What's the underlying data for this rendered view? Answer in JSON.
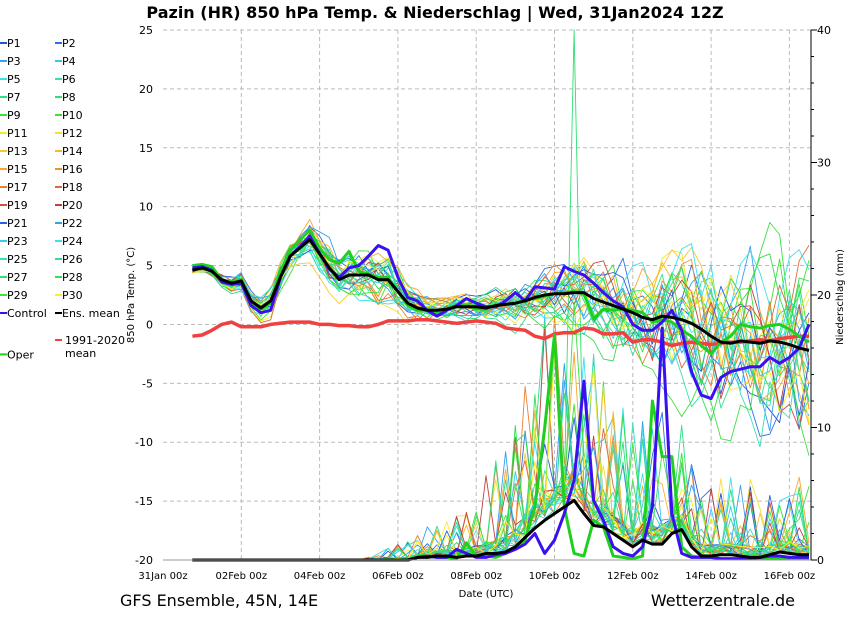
{
  "chart_data": {
    "type": "line",
    "title": "Pazin  (HR)  850 hPa Temp. & Niederschlag | Wed, 31Jan2024 12Z",
    "ylabel": "850 hPa Temp. (°C)",
    "y2label": "Niederschlag (mm)",
    "xlabel": "Date (UTC)",
    "footer_left": "GFS Ensemble, 45N, 14E",
    "footer_right": "Wetterzentrale.de",
    "ylim": [
      -20,
      25
    ],
    "y2lim": [
      0,
      40
    ],
    "yticks": [
      "-20",
      "-15",
      "-10",
      "-5",
      "0",
      "5",
      "10",
      "15",
      "20",
      "25"
    ],
    "y2ticks": [
      "0",
      "10",
      "20",
      "30",
      "40"
    ],
    "xticks": [
      "31Jan 00z",
      "02Feb 00z",
      "04Feb 00z",
      "06Feb 00z",
      "08Feb 00z",
      "10Feb 00z",
      "12Feb 00z",
      "14Feb 00z",
      "16Feb 00z"
    ],
    "x_start_hour": 18,
    "x_step_hours": 6,
    "grid": true,
    "legend_position": "left-outside",
    "legend": [
      {
        "label": "P1",
        "color": "#2a4fd8"
      },
      {
        "label": "P2",
        "color": "#2f6ee8"
      },
      {
        "label": "P3",
        "color": "#3aa0f0"
      },
      {
        "label": "P4",
        "color": "#3cc4f0"
      },
      {
        "label": "P5",
        "color": "#3ee0e6"
      },
      {
        "label": "P6",
        "color": "#36e0b0"
      },
      {
        "label": "P7",
        "color": "#2ee08a"
      },
      {
        "label": "P8",
        "color": "#2ee070"
      },
      {
        "label": "P9",
        "color": "#3ae040"
      },
      {
        "label": "P10",
        "color": "#40e030"
      },
      {
        "label": "P11",
        "color": "#f0f020"
      },
      {
        "label": "P12",
        "color": "#f5e030"
      },
      {
        "label": "P13",
        "color": "#f8c830"
      },
      {
        "label": "P14",
        "color": "#f8b828"
      },
      {
        "label": "P15",
        "color": "#f5a830"
      },
      {
        "label": "P16",
        "color": "#ee9030"
      },
      {
        "label": "P17",
        "color": "#e88030"
      },
      {
        "label": "P18",
        "color": "#e06840"
      },
      {
        "label": "P19",
        "color": "#d05040"
      },
      {
        "label": "P20",
        "color": "#c04040"
      },
      {
        "label": "P21",
        "color": "#2a60e0"
      },
      {
        "label": "P22",
        "color": "#30a0f0"
      },
      {
        "label": "P23",
        "color": "#38c8f0"
      },
      {
        "label": "P24",
        "color": "#38e0f0"
      },
      {
        "label": "P25",
        "color": "#36e0b8"
      },
      {
        "label": "P26",
        "color": "#30e090"
      },
      {
        "label": "P27",
        "color": "#30e070"
      },
      {
        "label": "P28",
        "color": "#30e050"
      },
      {
        "label": "P29",
        "color": "#40e040"
      },
      {
        "label": "P30",
        "color": "#f8f020"
      },
      {
        "label": "Control",
        "color": "#3a10f0"
      },
      {
        "label": "Ens. mean",
        "color": "#000000"
      },
      {
        "label": "1991-2020 mean",
        "color": "#f04040"
      },
      {
        "label": "Oper",
        "color": "#20d020"
      }
    ],
    "series": [
      {
        "name": "Ens. mean",
        "color": "#000000",
        "values": [
          4.6,
          4.8,
          4.5,
          3.8,
          3.5,
          3.7,
          2.0,
          1.4,
          2.0,
          4.0,
          5.8,
          6.5,
          7.2,
          6.0,
          4.8,
          3.8,
          4.2,
          4.2,
          4.2,
          3.8,
          3.8,
          2.8,
          1.8,
          1.4,
          1.2,
          1.2,
          1.3,
          1.5,
          1.5,
          1.5,
          1.4,
          1.6,
          1.7,
          1.8,
          2.0,
          2.3,
          2.5,
          2.6,
          2.6,
          2.7,
          2.7,
          2.2,
          1.9,
          1.6,
          1.3,
          1.0,
          0.6,
          0.4,
          0.7,
          0.6,
          0.4,
          0.1,
          -0.4,
          -1.0,
          -1.5,
          -1.6,
          -1.4,
          -1.5,
          -1.6,
          -1.4,
          -1.5,
          -1.7,
          -2.0,
          -2.2
        ]
      },
      {
        "name": "Control",
        "color": "#3a10f0",
        "values": [
          4.8,
          4.9,
          4.6,
          3.6,
          3.4,
          3.5,
          1.6,
          1.0,
          1.2,
          4.0,
          5.8,
          6.6,
          7.5,
          6.0,
          4.7,
          4.0,
          4.8,
          5.0,
          5.8,
          6.7,
          6.3,
          4.0,
          2.3,
          2.0,
          1.2,
          0.7,
          1.2,
          1.6,
          2.2,
          1.8,
          1.5,
          1.5,
          2.0,
          2.7,
          2.0,
          3.2,
          3.1,
          3.0,
          4.9,
          4.5,
          4.2,
          3.5,
          2.7,
          2.0,
          1.5,
          0.0,
          -0.5,
          -0.5,
          0.2,
          1.2,
          -0.5,
          -4.0,
          -6.0,
          -6.3,
          -4.5,
          -4.0,
          -3.8,
          -3.6,
          -3.6,
          -2.8,
          -3.3,
          -2.8,
          -2.0,
          0.0
        ]
      },
      {
        "name": "Oper",
        "color": "#20d020",
        "values": [
          5.0,
          5.1,
          4.9,
          3.8,
          3.6,
          3.8,
          1.8,
          1.3,
          1.8,
          4.5,
          6.3,
          7.2,
          8.0,
          6.5,
          5.5,
          5.2,
          6.2,
          4.5,
          4.3,
          4.0,
          4.0,
          2.8,
          1.6,
          1.2,
          1.2,
          1.0,
          1.3,
          1.6,
          1.6,
          1.3,
          1.3,
          1.7,
          1.7,
          1.8,
          2.1,
          2.2,
          2.4,
          2.6,
          2.7,
          2.8,
          2.6,
          0.5,
          1.3,
          1.2,
          1.3,
          1.2,
          1.0,
          0.2,
          0.4,
          0.2,
          -0.5,
          -1.0,
          -1.8,
          -2.5,
          -1.5,
          -1.0,
          0.0,
          -0.2,
          -0.3,
          -0.1,
          0.0,
          -0.4,
          -1.0,
          -1.5
        ]
      },
      {
        "name": "1991-2020 mean",
        "color": "#f04040",
        "values": [
          -1.0,
          -0.9,
          -0.5,
          0.0,
          0.2,
          -0.2,
          -0.2,
          -0.2,
          0.0,
          0.1,
          0.2,
          0.2,
          0.2,
          0.0,
          0.0,
          -0.1,
          -0.1,
          -0.2,
          -0.2,
          0.0,
          0.3,
          0.3,
          0.3,
          0.4,
          0.4,
          0.3,
          0.2,
          0.1,
          0.2,
          0.3,
          0.2,
          0.1,
          -0.3,
          -0.4,
          -0.5,
          -1.0,
          -1.2,
          -0.8,
          -0.7,
          -0.7,
          -0.3,
          -0.4,
          -0.8,
          -0.8,
          -0.7,
          -1.5,
          -1.3,
          -1.3,
          -1.5,
          -1.8,
          -1.6,
          -1.5,
          -1.6,
          -1.7,
          -1.6,
          -1.5,
          -1.5,
          -1.4,
          -1.3,
          -1.4,
          -1.2,
          -1.1,
          -1.0,
          -1.0
        ]
      }
    ],
    "precip_series": [
      {
        "name": "Ens. mean",
        "color": "#000000",
        "values": [
          0,
          0,
          0,
          0,
          0,
          0,
          0,
          0,
          0,
          0,
          0,
          0,
          0,
          0,
          0,
          0,
          0,
          0,
          0,
          0,
          0,
          0,
          0,
          0.2,
          0.2,
          0.3,
          0.3,
          0.2,
          0.3,
          0.3,
          0.5,
          0.5,
          0.6,
          1.0,
          1.7,
          2.4,
          3.0,
          3.5,
          4.0,
          4.5,
          3.5,
          2.6,
          2.5,
          2.0,
          1.5,
          1.0,
          1.5,
          1.2,
          1.2,
          2.0,
          2.3,
          1.0,
          0.3,
          0.3,
          0.4,
          0.4,
          0.3,
          0.2,
          0.2,
          0.4,
          0.6,
          0.5,
          0.4,
          0.4
        ]
      },
      {
        "name": "Control",
        "color": "#3a10f0",
        "values": [
          0,
          0,
          0,
          0,
          0,
          0,
          0,
          0,
          0,
          0,
          0,
          0,
          0,
          0,
          0,
          0,
          0,
          0,
          0,
          0,
          0,
          0,
          0,
          0.2,
          0.3,
          0.2,
          0.2,
          0.8,
          0.5,
          0.2,
          0.2,
          0.4,
          0.5,
          0.8,
          1.2,
          2.0,
          0.5,
          1.5,
          3.5,
          6.0,
          13.5,
          4.5,
          3.0,
          1.0,
          0.5,
          0.3,
          1.0,
          4.0,
          17.5,
          3.5,
          0.5,
          0.2,
          0.2,
          0.2,
          0.1,
          0.1,
          0.1,
          0.1,
          0.2,
          0.3,
          0.3,
          0.2,
          0.2,
          0.2
        ]
      },
      {
        "name": "Oper",
        "color": "#20d020",
        "values": [
          0,
          0,
          0,
          0,
          0,
          0,
          0,
          0,
          0,
          0,
          0,
          0,
          0,
          0,
          0,
          0,
          0,
          0,
          0,
          0,
          0,
          0,
          0,
          0.2,
          0.3,
          0.2,
          0.2,
          0.1,
          1.3,
          0.3,
          0.3,
          0.2,
          0.5,
          1.0,
          1.5,
          4.0,
          10.0,
          17.0,
          4.0,
          0.5,
          0.3,
          3.0,
          2.5,
          0.3,
          0.2,
          0.1,
          0.3,
          12.0,
          7.8,
          7.8,
          1.0,
          0.3,
          0.2,
          0.2,
          0.1,
          0.1,
          0.1,
          0.1,
          0.1,
          0.1,
          0.1,
          0.1,
          0.1,
          0.1
        ]
      }
    ],
    "member_spread_temp": [
      0.3,
      0.3,
      0.4,
      0.5,
      0.6,
      0.7,
      0.7,
      0.8,
      0.9,
      1.0,
      1.0,
      1.1,
      1.2,
      1.4,
      1.5,
      1.6,
      1.6,
      1.7,
      1.7,
      1.8,
      1.7,
      1.5,
      1.2,
      1.0,
      0.9,
      0.8,
      0.8,
      0.8,
      0.8,
      0.8,
      0.9,
      1.0,
      1.2,
      1.4,
      1.5,
      1.6,
      1.8,
      2.0,
      2.2,
      2.4,
      2.6,
      2.8,
      3.0,
      3.2,
      3.4,
      3.6,
      3.8,
      4.0,
      4.2,
      4.4,
      4.6,
      4.8,
      5.0,
      5.2,
      5.4,
      5.6,
      5.8,
      6.0,
      6.2,
      6.4,
      6.6,
      6.8,
      7.0,
      7.2
    ],
    "member_spread_precip": [
      0,
      0,
      0,
      0,
      0,
      0,
      0,
      0,
      0,
      0,
      0,
      0,
      0,
      0,
      0,
      0,
      0,
      0,
      0.2,
      0.3,
      0.5,
      0.6,
      0.8,
      1.0,
      1.2,
      1.3,
      1.5,
      1.8,
      2.0,
      2.5,
      3.0,
      3.5,
      4.0,
      5.0,
      6.0,
      7.0,
      8.0,
      8.0,
      8.0,
      7.5,
      7.0,
      6.5,
      6.0,
      5.5,
      5.0,
      5.0,
      5.0,
      5.0,
      5.0,
      4.5,
      4.0,
      3.5,
      3.0,
      3.0,
      3.0,
      3.0,
      3.0,
      3.0,
      3.0,
      3.0,
      3.0,
      3.0,
      3.0,
      3.0
    ]
  }
}
